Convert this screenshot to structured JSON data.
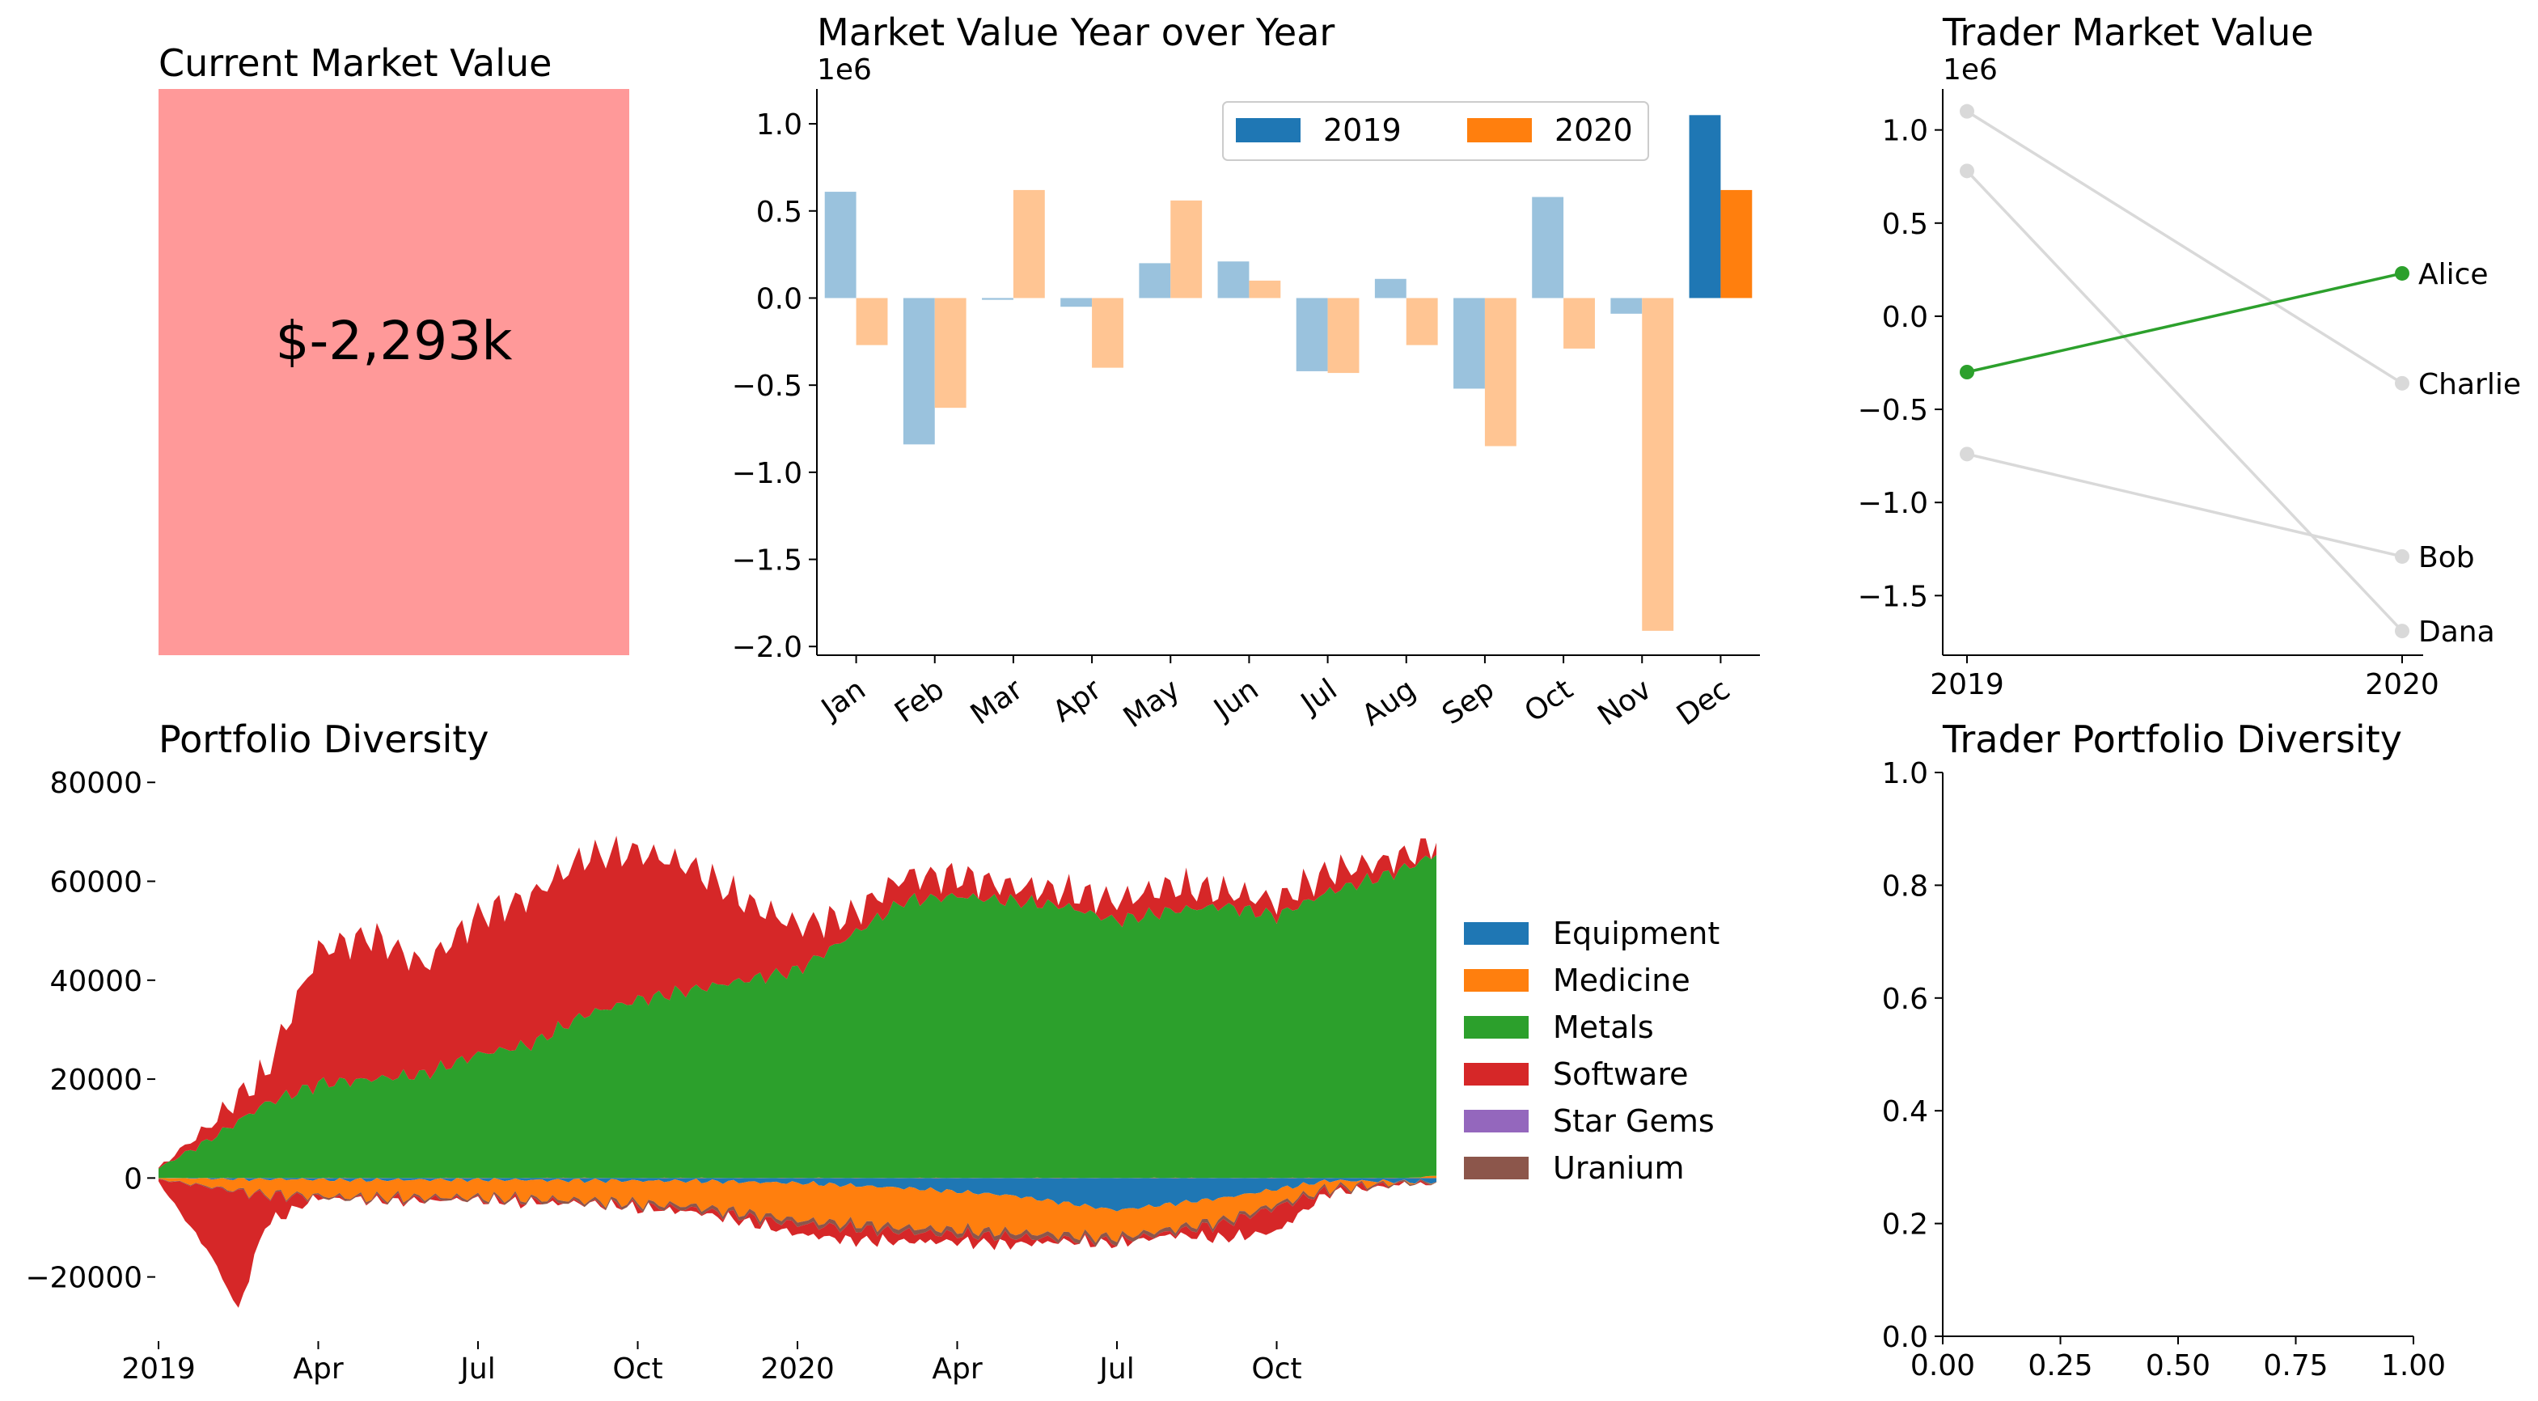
{
  "kpi": {
    "title": "Current Market Value",
    "value_text": "$-2,293k",
    "color": "#ff9999"
  },
  "chart_data": [
    {
      "id": "yoy",
      "type": "bar",
      "title": "Market Value Year over Year",
      "offset_label": "1e6",
      "categories": [
        "Jan",
        "Feb",
        "Mar",
        "Apr",
        "May",
        "Jun",
        "Jul",
        "Aug",
        "Sep",
        "Oct",
        "Nov",
        "Dec"
      ],
      "series": [
        {
          "name": "2019",
          "color": "#1f77b4",
          "values": [
            0.61,
            -0.84,
            -0.01,
            -0.05,
            0.2,
            0.21,
            -0.42,
            0.11,
            -0.52,
            0.58,
            -0.09,
            1.05
          ]
        },
        {
          "name": "2020",
          "color": "#ff7f0e",
          "values": [
            -0.27,
            -0.63,
            0.62,
            -0.4,
            0.56,
            0.1,
            -0.43,
            -0.27,
            -0.85,
            -0.29,
            -1.91,
            0.62
          ]
        }
      ],
      "highlight_category": "Dec",
      "faded_alpha": 0.45,
      "ylim": [
        -2.05,
        1.2
      ],
      "yticks": [
        -2.0,
        -1.5,
        -1.0,
        -0.5,
        0.0,
        0.5,
        1.0
      ],
      "ytick_labels": [
        "−2.0",
        "−1.5",
        "−1.0",
        "−0.5",
        "0.0",
        "0.5",
        "1.0"
      ],
      "legend_position": "top-right",
      "xlabel": "",
      "ylabel": ""
    },
    {
      "id": "trader",
      "type": "line",
      "title": "Trader Market Value",
      "offset_label": "1e6",
      "x": [
        "2019",
        "2020"
      ],
      "xtick_labels": [
        "2019",
        "2020"
      ],
      "ylim": [
        -1.82,
        1.22
      ],
      "yticks": [
        -1.5,
        -1.0,
        -0.5,
        0.0,
        0.5,
        1.0
      ],
      "ytick_labels": [
        "−1.5",
        "−1.0",
        "−0.5",
        "0.0",
        "0.5",
        "1.0"
      ],
      "series": [
        {
          "name": "Alice",
          "values": [
            -0.3,
            0.23
          ],
          "color": "#2ca02c"
        },
        {
          "name": "Charlie",
          "values": [
            1.1,
            -0.36
          ],
          "color": "#d9d9d9"
        },
        {
          "name": "Bob",
          "values": [
            -0.74,
            -1.29
          ],
          "color": "#d9d9d9"
        },
        {
          "name": "Dana",
          "values": [
            0.78,
            -1.69
          ],
          "color": "#d9d9d9"
        }
      ]
    },
    {
      "id": "diversity",
      "type": "area",
      "title": "Portfolio Diversity",
      "ylim": [
        -32000,
        82000
      ],
      "yticks": [
        -20000,
        0,
        20000,
        40000,
        60000,
        80000
      ],
      "ytick_labels": [
        "−20000",
        "0",
        "20000",
        "40000",
        "60000",
        "80000"
      ],
      "xtick_labels": [
        "2019",
        "Apr",
        "Jul",
        "Oct",
        "2020",
        "Apr",
        "Jul",
        "Oct"
      ],
      "xtick_months": [
        0,
        3,
        6,
        9,
        12,
        15,
        18,
        21
      ],
      "x_range_months": [
        0,
        24
      ],
      "legend_position": "right",
      "series": [
        {
          "name": "Equipment",
          "color": "#1f77b4",
          "months": [
            0,
            2,
            4,
            6,
            8,
            10,
            12,
            14,
            16,
            18,
            20,
            22,
            24
          ],
          "values": [
            0,
            -200,
            -400,
            -300,
            -500,
            -600,
            -1000,
            -2000,
            -3500,
            -6500,
            -4000,
            -500,
            -800
          ]
        },
        {
          "name": "Medicine",
          "color": "#ff7f0e",
          "months": [
            0,
            2,
            4,
            6,
            8,
            10,
            12,
            14,
            16,
            18,
            20,
            22,
            24
          ],
          "values": [
            -200,
            -3000,
            -3500,
            -3500,
            -4000,
            -5000,
            -7500,
            -8000,
            -7500,
            -5500,
            -4500,
            -1500,
            500
          ]
        },
        {
          "name": "Metals",
          "color": "#2ca02c",
          "months": [
            0,
            1,
            2,
            3,
            4,
            5,
            6,
            7,
            8,
            9,
            10,
            11,
            12,
            13,
            14,
            15,
            16,
            17,
            18,
            19,
            20,
            21,
            22,
            23,
            24
          ],
          "values": [
            2000,
            8000,
            15000,
            19000,
            20000,
            21000,
            25000,
            27000,
            33000,
            36000,
            38000,
            40000,
            42000,
            49000,
            56000,
            57000,
            56000,
            55000,
            52000,
            54000,
            55000,
            53000,
            58000,
            61000,
            65000
          ]
        },
        {
          "name": "Software",
          "color": "#d62728",
          "months": [
            0,
            1,
            1.5,
            2,
            3,
            4,
            5,
            6,
            7,
            8,
            9,
            10,
            11,
            12,
            13,
            14,
            15,
            16,
            17,
            18,
            19,
            20,
            21,
            22,
            23,
            24
          ],
          "pos": [
            0,
            3000,
            5000,
            6000,
            27000,
            29000,
            22000,
            28000,
            30000,
            32000,
            30000,
            25000,
            16000,
            9000,
            4000,
            5000,
            4000,
            3000,
            3000,
            4000,
            5000,
            3000,
            3000,
            4000,
            3000,
            2000
          ],
          "neg": [
            -500,
            -14000,
            -24000,
            -6000,
            0,
            0,
            0,
            0,
            0,
            0,
            -200,
            -500,
            -1000,
            -2000,
            -2500,
            -2000,
            -1500,
            -1500,
            -500,
            -200,
            -500,
            -3000,
            -5000,
            -200,
            0,
            0
          ]
        },
        {
          "name": "Star Gems",
          "color": "#9467bd",
          "values": [
            0
          ]
        },
        {
          "name": "Uranium",
          "color": "#8c564b",
          "months": [
            0,
            4,
            8,
            12,
            16,
            20,
            24
          ],
          "values": [
            -100,
            -400,
            -500,
            -800,
            -900,
            -700,
            -200
          ]
        }
      ]
    },
    {
      "id": "trader_div",
      "type": "line",
      "title": "Trader Portfolio Diversity",
      "xlim": [
        0,
        1
      ],
      "ylim": [
        0,
        1
      ],
      "xtick_labels": [
        "0.00",
        "0.25",
        "0.50",
        "0.75",
        "1.00"
      ],
      "ytick_labels": [
        "0.0",
        "0.2",
        "0.4",
        "0.6",
        "0.8",
        "1.0"
      ],
      "series": []
    }
  ]
}
